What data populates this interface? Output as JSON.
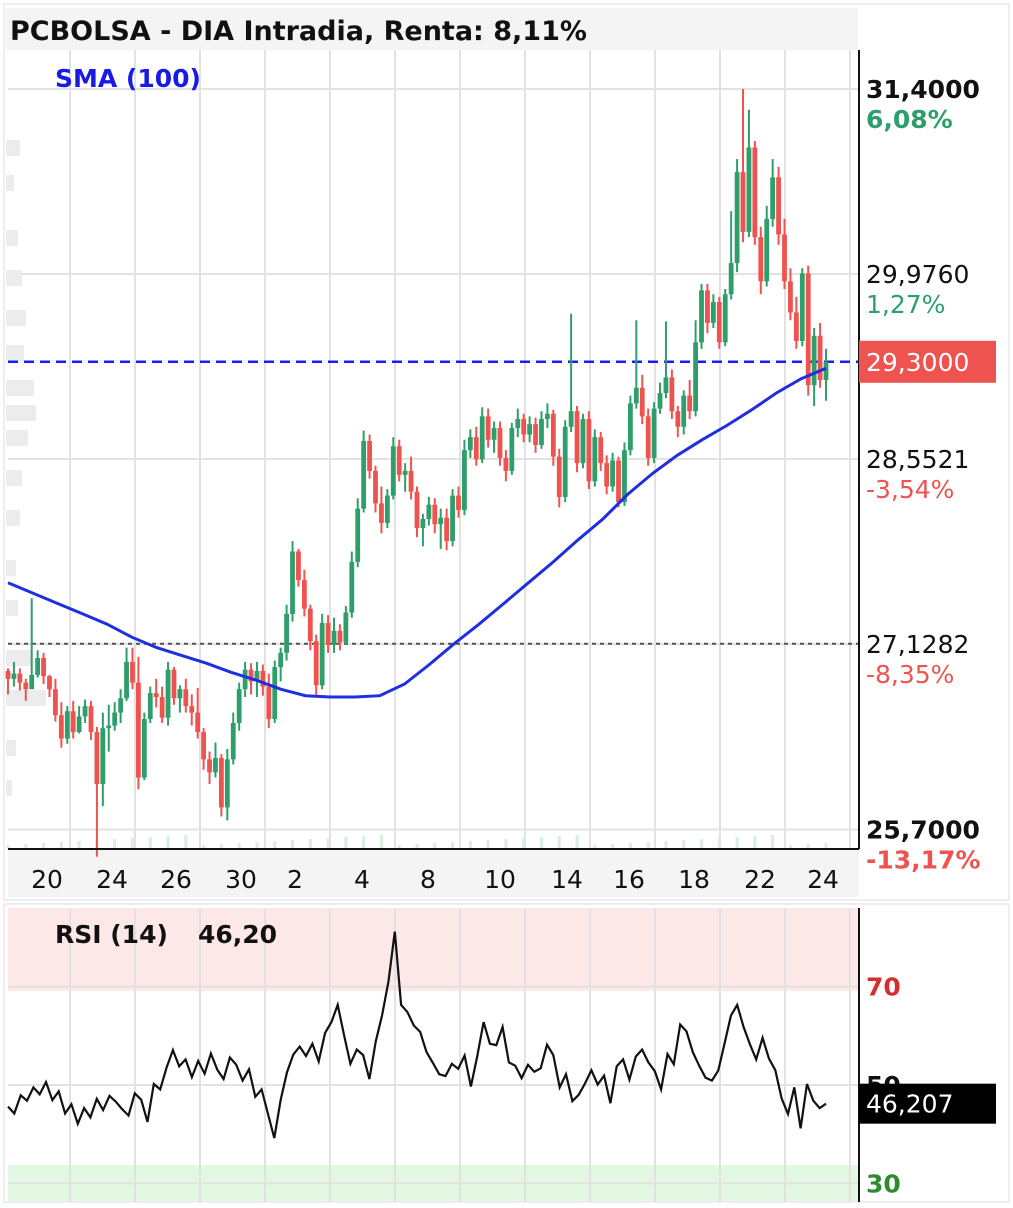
{
  "chart_data": [
    {
      "type": "candlestick",
      "title": "PCBOLSA - DIA Intradia, Renta: 8,11%",
      "indicator": "SMA (100)",
      "x_tick_labels": [
        "20",
        "24",
        "26",
        "30",
        "2",
        "4",
        "8",
        "10",
        "14",
        "16",
        "18",
        "22",
        "24"
      ],
      "ylim": [
        25.55,
        31.7
      ],
      "price_levels": [
        {
          "price": 31.4,
          "label": "31,4000",
          "pct": "6,08%",
          "pct_color": "#2e9e6b",
          "bold": true
        },
        {
          "price": 29.976,
          "label": "29,9760",
          "pct": "1,27%",
          "pct_color": "#2e9e6b",
          "bold": false
        },
        {
          "price": 28.5521,
          "label": "28,5521",
          "pct": "-3,54%",
          "pct_color": "#ef5350",
          "bold": false
        },
        {
          "price": 27.1282,
          "label": "27,1282",
          "pct": "-8,35%",
          "pct_color": "#ef5350",
          "bold": false
        },
        {
          "price": 25.7,
          "label": "25,7000",
          "pct": "-13,17%",
          "pct_color": "#ef5350",
          "bold": true
        }
      ],
      "current_price": 29.3,
      "current_price_label": "29,3000",
      "reference_price": 27.13,
      "sma_values": [
        27.6,
        27.52,
        27.44,
        27.36,
        27.28,
        27.18,
        27.1,
        27.04,
        26.98,
        26.91,
        26.85,
        26.78,
        26.73,
        26.72,
        26.72,
        26.73,
        26.82,
        26.97,
        27.13,
        27.28,
        27.44,
        27.6,
        27.76,
        27.93,
        28.09,
        28.28,
        28.44,
        28.58,
        28.7,
        28.81,
        28.93,
        29.06,
        29.17,
        29.25
      ],
      "candles": [
        [
          26.92,
          26.94,
          26.74,
          26.86
        ],
        [
          26.86,
          26.99,
          26.8,
          26.9
        ],
        [
          26.9,
          26.94,
          26.77,
          26.83
        ],
        [
          26.83,
          26.86,
          26.69,
          26.78
        ],
        [
          26.78,
          27.48,
          26.79,
          26.89
        ],
        [
          26.89,
          27.08,
          26.87,
          27.02
        ],
        [
          27.02,
          27.06,
          26.82,
          26.88
        ],
        [
          26.88,
          26.89,
          26.72,
          26.78
        ],
        [
          26.78,
          26.86,
          26.53,
          26.58
        ],
        [
          26.58,
          26.68,
          26.33,
          26.4
        ],
        [
          26.4,
          26.65,
          26.36,
          26.61
        ],
        [
          26.61,
          26.69,
          26.4,
          26.45
        ],
        [
          26.45,
          26.65,
          26.44,
          26.57
        ],
        [
          26.57,
          26.7,
          26.52,
          26.65
        ],
        [
          26.65,
          26.69,
          26.39,
          26.45
        ],
        [
          26.45,
          26.49,
          25.49,
          26.05
        ],
        [
          26.05,
          26.6,
          25.88,
          26.48
        ],
        [
          26.48,
          26.66,
          26.3,
          26.5
        ],
        [
          26.5,
          26.68,
          26.46,
          26.6
        ],
        [
          26.6,
          26.78,
          26.52,
          26.71
        ],
        [
          26.71,
          27.1,
          26.69,
          26.99
        ],
        [
          26.99,
          27.1,
          26.78,
          26.83
        ],
        [
          26.83,
          27.03,
          26.01,
          26.1
        ],
        [
          26.1,
          26.6,
          26.08,
          26.55
        ],
        [
          26.55,
          26.8,
          26.52,
          26.75
        ],
        [
          26.75,
          26.86,
          26.64,
          26.72
        ],
        [
          26.72,
          26.8,
          26.52,
          26.56
        ],
        [
          26.56,
          26.99,
          26.5,
          26.93
        ],
        [
          26.93,
          26.95,
          26.66,
          26.71
        ],
        [
          26.71,
          26.81,
          26.6,
          26.78
        ],
        [
          26.78,
          26.86,
          26.6,
          26.65
        ],
        [
          26.65,
          26.74,
          26.5,
          26.6
        ],
        [
          26.6,
          26.79,
          26.4,
          26.45
        ],
        [
          26.45,
          26.48,
          26.16,
          26.24
        ],
        [
          26.24,
          26.3,
          26.05,
          26.14
        ],
        [
          26.14,
          26.37,
          26.1,
          26.25
        ],
        [
          26.25,
          26.28,
          25.8,
          25.87
        ],
        [
          25.87,
          26.32,
          25.77,
          26.24
        ],
        [
          26.24,
          26.6,
          26.2,
          26.52
        ],
        [
          26.52,
          26.83,
          26.46,
          26.78
        ],
        [
          26.78,
          26.99,
          26.72,
          26.93
        ],
        [
          26.93,
          26.98,
          26.74,
          26.84
        ],
        [
          26.84,
          26.99,
          26.72,
          26.92
        ],
        [
          26.92,
          26.97,
          26.73,
          26.8
        ],
        [
          26.8,
          26.9,
          26.48,
          26.55
        ],
        [
          26.55,
          27.0,
          26.52,
          26.95
        ],
        [
          26.95,
          27.1,
          26.84,
          27.06
        ],
        [
          27.06,
          27.43,
          27.0,
          27.36
        ],
        [
          27.36,
          27.92,
          27.3,
          27.84
        ],
        [
          27.84,
          27.86,
          27.57,
          27.62
        ],
        [
          27.62,
          27.7,
          27.34,
          27.4
        ],
        [
          27.4,
          27.43,
          27.08,
          27.15
        ],
        [
          27.15,
          27.2,
          26.73,
          26.81
        ],
        [
          26.81,
          27.36,
          26.78,
          27.29
        ],
        [
          27.29,
          27.35,
          27.06,
          27.12
        ],
        [
          27.12,
          27.33,
          27.06,
          27.23
        ],
        [
          27.23,
          27.28,
          27.08,
          27.14
        ],
        [
          27.14,
          27.42,
          27.12,
          27.37
        ],
        [
          27.37,
          27.84,
          27.33,
          27.76
        ],
        [
          27.76,
          28.25,
          27.72,
          28.17
        ],
        [
          28.17,
          28.77,
          28.14,
          28.69
        ],
        [
          28.69,
          28.74,
          28.4,
          28.46
        ],
        [
          28.46,
          28.5,
          28.14,
          28.21
        ],
        [
          28.21,
          28.34,
          27.98,
          28.06
        ],
        [
          28.06,
          28.32,
          28.02,
          28.27
        ],
        [
          28.27,
          28.72,
          28.24,
          28.65
        ],
        [
          28.65,
          28.7,
          28.38,
          28.43
        ],
        [
          28.43,
          28.52,
          28.3,
          28.46
        ],
        [
          28.46,
          28.57,
          28.24,
          28.3
        ],
        [
          28.3,
          28.34,
          27.95,
          28.02
        ],
        [
          28.02,
          28.13,
          27.88,
          28.09
        ],
        [
          28.09,
          28.26,
          28.04,
          28.2
        ],
        [
          28.2,
          28.25,
          27.98,
          28.05
        ],
        [
          28.05,
          28.17,
          27.86,
          28.1
        ],
        [
          28.1,
          28.17,
          27.85,
          27.92
        ],
        [
          27.92,
          28.32,
          27.88,
          28.27
        ],
        [
          28.27,
          28.34,
          28.1,
          28.16
        ],
        [
          28.16,
          28.7,
          28.12,
          28.62
        ],
        [
          28.62,
          28.78,
          28.56,
          28.72
        ],
        [
          28.72,
          28.8,
          28.5,
          28.55
        ],
        [
          28.55,
          28.95,
          28.52,
          28.88
        ],
        [
          28.88,
          28.94,
          28.64,
          28.7
        ],
        [
          28.7,
          28.84,
          28.6,
          28.79
        ],
        [
          28.79,
          28.84,
          28.5,
          28.56
        ],
        [
          28.56,
          28.62,
          28.38,
          28.46
        ],
        [
          28.46,
          28.83,
          28.43,
          28.79
        ],
        [
          28.79,
          28.94,
          28.72,
          28.86
        ],
        [
          28.86,
          28.9,
          28.68,
          28.74
        ],
        [
          28.74,
          28.88,
          28.68,
          28.82
        ],
        [
          28.82,
          28.87,
          28.6,
          28.66
        ],
        [
          28.66,
          28.92,
          28.63,
          28.86
        ],
        [
          28.86,
          28.98,
          28.79,
          28.9
        ],
        [
          28.9,
          28.93,
          28.5,
          28.57
        ],
        [
          28.57,
          28.63,
          28.18,
          28.26
        ],
        [
          28.26,
          28.85,
          28.22,
          28.8
        ],
        [
          28.8,
          29.67,
          28.76,
          28.92
        ],
        [
          28.92,
          28.96,
          28.45,
          28.52
        ],
        [
          28.52,
          28.9,
          28.48,
          28.86
        ],
        [
          28.86,
          28.92,
          28.32,
          28.38
        ],
        [
          28.38,
          28.78,
          28.34,
          28.72
        ],
        [
          28.72,
          28.76,
          28.46,
          28.52
        ],
        [
          28.52,
          28.58,
          28.28,
          28.34
        ],
        [
          28.34,
          28.6,
          28.3,
          28.54
        ],
        [
          28.54,
          28.57,
          28.18,
          28.22
        ],
        [
          28.22,
          28.68,
          28.19,
          28.62
        ],
        [
          28.62,
          29.04,
          28.58,
          28.98
        ],
        [
          28.98,
          29.62,
          28.94,
          29.1
        ],
        [
          29.1,
          29.2,
          28.82,
          28.88
        ],
        [
          28.88,
          28.94,
          28.5,
          28.56
        ],
        [
          28.56,
          28.99,
          28.52,
          28.94
        ],
        [
          28.94,
          29.14,
          28.9,
          29.06
        ],
        [
          29.06,
          29.61,
          29.02,
          29.18
        ],
        [
          29.18,
          29.24,
          28.86,
          28.92
        ],
        [
          28.92,
          28.96,
          28.72,
          28.8
        ],
        [
          28.8,
          29.08,
          28.74,
          29.04
        ],
        [
          29.04,
          29.16,
          28.86,
          28.92
        ],
        [
          28.92,
          29.62,
          28.88,
          29.45
        ],
        [
          29.45,
          29.9,
          29.4,
          29.85
        ],
        [
          29.85,
          29.9,
          29.52,
          29.6
        ],
        [
          29.6,
          29.82,
          29.56,
          29.76
        ],
        [
          29.76,
          29.8,
          29.4,
          29.45
        ],
        [
          29.45,
          29.86,
          29.42,
          29.82
        ],
        [
          29.82,
          30.46,
          29.78,
          30.06
        ],
        [
          30.06,
          30.86,
          29.99,
          30.76
        ],
        [
          30.76,
          31.4,
          30.22,
          30.3
        ],
        [
          30.3,
          31.24,
          30.26,
          30.95
        ],
        [
          30.95,
          31.0,
          30.2,
          30.26
        ],
        [
          30.26,
          30.34,
          29.82,
          29.92
        ],
        [
          29.92,
          30.5,
          29.88,
          30.4
        ],
        [
          30.4,
          30.86,
          30.34,
          30.72
        ],
        [
          30.72,
          30.8,
          30.2,
          30.28
        ],
        [
          30.28,
          30.4,
          29.86,
          29.92
        ],
        [
          29.92,
          30.02,
          29.62,
          29.68
        ],
        [
          29.68,
          29.8,
          29.4,
          29.46
        ],
        [
          29.46,
          30.02,
          29.42,
          29.98
        ],
        [
          29.98,
          30.04,
          29.04,
          29.12
        ],
        [
          29.12,
          29.56,
          28.96,
          29.5
        ],
        [
          29.5,
          29.6,
          29.1,
          29.16
        ],
        [
          29.16,
          29.4,
          29.0,
          29.3
        ]
      ]
    },
    {
      "type": "line",
      "title": "RSI (14)",
      "value_label": "46,20",
      "current_label": "46,207",
      "ylim": [
        26.2,
        86.0
      ],
      "levels": [
        {
          "value": 70,
          "label": "70",
          "color": "#d32f2f"
        },
        {
          "value": 50,
          "label": "50",
          "color": "#111111"
        },
        {
          "value": 30,
          "label": "30",
          "color": "#2e8b2e"
        }
      ],
      "values": [
        45.6,
        44.2,
        47.9,
        46.8,
        49.5,
        48.1,
        50.6,
        46.9,
        48.7,
        44.2,
        46.1,
        42.1,
        45.3,
        43.4,
        47.2,
        44.9,
        47.8,
        46.6,
        45.1,
        43.8,
        48.3,
        47.0,
        42.5,
        50.2,
        49.1,
        53.5,
        57.1,
        53.8,
        55.2,
        51.6,
        54.9,
        52.3,
        56.4,
        53.1,
        51.2,
        55.6,
        54.1,
        50.9,
        53.2,
        47.6,
        49.1,
        44.1,
        39.2,
        47.0,
        52.6,
        56.2,
        57.8,
        55.9,
        58.4,
        54.8,
        60.6,
        62.8,
        66.3,
        60.1,
        54.3,
        57.2,
        56.1,
        51.2,
        58.9,
        64.2,
        71.1,
        81.2,
        66.3,
        64.8,
        62.1,
        60.8,
        56.7,
        54.5,
        52.2,
        51.8,
        54.3,
        53.3,
        56.0,
        49.7,
        55.8,
        62.8,
        58.4,
        58.1,
        61.8,
        54.6,
        53.9,
        51.4,
        54.1,
        52.7,
        53.4,
        58.2,
        56.1,
        49.5,
        52.2,
        46.7,
        48.0,
        50.3,
        53.0,
        50.1,
        51.9,
        46.3,
        53.8,
        55.2,
        51.1,
        55.8,
        57.2,
        54.6,
        52.8,
        49.1,
        56.3,
        54.2,
        62.3,
        60.9,
        56.7,
        53.9,
        51.5,
        50.9,
        52.9,
        58.4,
        64.1,
        66.3,
        61.8,
        58.3,
        55.2,
        59.6,
        55.4,
        53.0,
        47.3,
        44.1,
        49.5,
        41.2,
        50.2,
        46.8,
        45.3,
        46.2
      ]
    }
  ]
}
